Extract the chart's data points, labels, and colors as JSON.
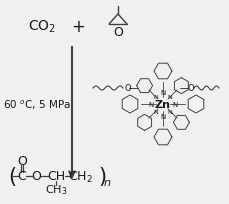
{
  "bg_color": "#f0f0f0",
  "line_color": "#404040",
  "text_color": "#1a1a1a",
  "arrow_color": "#404040",
  "figsize": [
    2.3,
    2.05
  ],
  "dpi": 100,
  "co2_label": "CO$_2$",
  "plus_label": "+",
  "conditions_label": "60 $^o$C, 5 MPa",
  "zn_label": "Zn",
  "n_label": "n"
}
